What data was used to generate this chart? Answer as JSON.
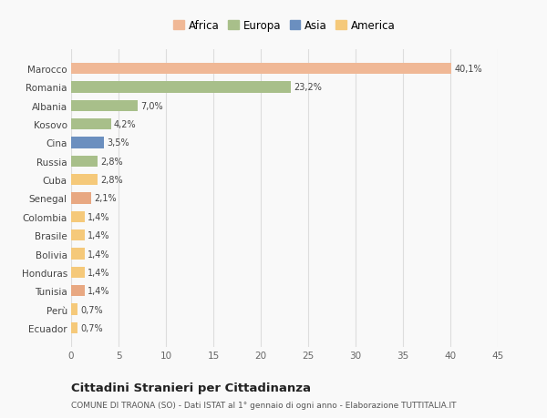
{
  "categories": [
    "Ecuador",
    "Perù",
    "Tunisia",
    "Honduras",
    "Bolivia",
    "Brasile",
    "Colombia",
    "Senegal",
    "Cuba",
    "Russia",
    "Cina",
    "Kosovo",
    "Albania",
    "Romania",
    "Marocco"
  ],
  "values": [
    0.7,
    0.7,
    1.4,
    1.4,
    1.4,
    1.4,
    1.4,
    2.1,
    2.8,
    2.8,
    3.5,
    4.2,
    7.0,
    23.2,
    40.1
  ],
  "labels": [
    "0,7%",
    "0,7%",
    "1,4%",
    "1,4%",
    "1,4%",
    "1,4%",
    "1,4%",
    "2,1%",
    "2,8%",
    "2,8%",
    "3,5%",
    "4,2%",
    "7,0%",
    "23,2%",
    "40,1%"
  ],
  "colors": [
    "#F5C97A",
    "#F5C97A",
    "#E8A882",
    "#F5C97A",
    "#F5C97A",
    "#F5C97A",
    "#F5C97A",
    "#E8A882",
    "#F5C97A",
    "#A8BF8A",
    "#6B8FBF",
    "#A8BF8A",
    "#A8BF8A",
    "#A8BF8A",
    "#F0B896"
  ],
  "continent_colors": {
    "Africa": "#F0B896",
    "Europa": "#A8BF8A",
    "Asia": "#6B8FBF",
    "America": "#F5C97A"
  },
  "xlim": [
    0,
    45
  ],
  "xticks": [
    0,
    5,
    10,
    15,
    20,
    25,
    30,
    35,
    40,
    45
  ],
  "title": "Cittadini Stranieri per Cittadinanza",
  "subtitle": "COMUNE DI TRAONA (SO) - Dati ISTAT al 1° gennaio di ogni anno - Elaborazione TUTTITALIA.IT",
  "bg_color": "#f9f9f9",
  "grid_color": "#dddddd",
  "bar_height": 0.6
}
